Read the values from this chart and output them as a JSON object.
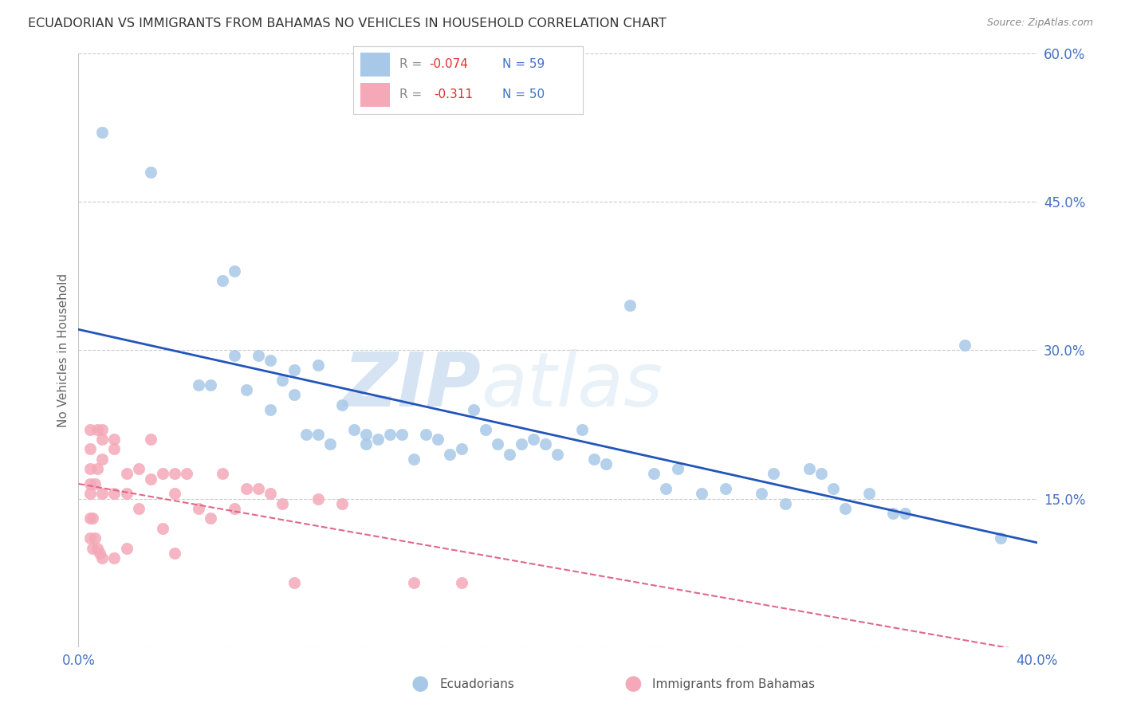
{
  "title": "ECUADORIAN VS IMMIGRANTS FROM BAHAMAS NO VEHICLES IN HOUSEHOLD CORRELATION CHART",
  "source": "Source: ZipAtlas.com",
  "ylabel": "No Vehicles in Household",
  "xlim": [
    0.0,
    0.4
  ],
  "ylim": [
    0.0,
    0.6
  ],
  "xticks": [
    0.0,
    0.05,
    0.1,
    0.15,
    0.2,
    0.25,
    0.3,
    0.35,
    0.4
  ],
  "xtick_labels": [
    "0.0%",
    "",
    "",
    "",
    "",
    "",
    "",
    "",
    "40.0%"
  ],
  "yticks": [
    0.0,
    0.15,
    0.3,
    0.45,
    0.6
  ],
  "ytick_labels": [
    "",
    "15.0%",
    "30.0%",
    "45.0%",
    "60.0%"
  ],
  "blue_color": "#A8C8E8",
  "pink_color": "#F4A8B8",
  "blue_line_color": "#2255BB",
  "pink_line_color": "#E06888",
  "grid_color": "#CCCCCC",
  "watermark_zip": "ZIP",
  "watermark_atlas": "atlas",
  "blue_x": [
    0.01,
    0.03,
    0.05,
    0.055,
    0.06,
    0.065,
    0.065,
    0.07,
    0.075,
    0.08,
    0.08,
    0.085,
    0.09,
    0.09,
    0.095,
    0.1,
    0.1,
    0.105,
    0.11,
    0.115,
    0.12,
    0.12,
    0.125,
    0.13,
    0.135,
    0.14,
    0.145,
    0.15,
    0.155,
    0.16,
    0.165,
    0.17,
    0.175,
    0.18,
    0.185,
    0.19,
    0.195,
    0.2,
    0.21,
    0.215,
    0.22,
    0.23,
    0.24,
    0.245,
    0.25,
    0.26,
    0.27,
    0.285,
    0.29,
    0.295,
    0.305,
    0.31,
    0.315,
    0.32,
    0.33,
    0.34,
    0.345,
    0.37,
    0.385
  ],
  "blue_y": [
    0.52,
    0.48,
    0.265,
    0.265,
    0.37,
    0.38,
    0.295,
    0.26,
    0.295,
    0.29,
    0.24,
    0.27,
    0.255,
    0.28,
    0.215,
    0.285,
    0.215,
    0.205,
    0.245,
    0.22,
    0.205,
    0.215,
    0.21,
    0.215,
    0.215,
    0.19,
    0.215,
    0.21,
    0.195,
    0.2,
    0.24,
    0.22,
    0.205,
    0.195,
    0.205,
    0.21,
    0.205,
    0.195,
    0.22,
    0.19,
    0.185,
    0.345,
    0.175,
    0.16,
    0.18,
    0.155,
    0.16,
    0.155,
    0.175,
    0.145,
    0.18,
    0.175,
    0.16,
    0.14,
    0.155,
    0.135,
    0.135,
    0.305,
    0.11
  ],
  "pink_x": [
    0.005,
    0.005,
    0.005,
    0.005,
    0.005,
    0.005,
    0.005,
    0.006,
    0.006,
    0.007,
    0.007,
    0.008,
    0.008,
    0.008,
    0.009,
    0.01,
    0.01,
    0.01,
    0.01,
    0.01,
    0.015,
    0.015,
    0.015,
    0.015,
    0.02,
    0.02,
    0.02,
    0.025,
    0.025,
    0.03,
    0.03,
    0.035,
    0.035,
    0.04,
    0.04,
    0.04,
    0.045,
    0.05,
    0.055,
    0.06,
    0.065,
    0.07,
    0.075,
    0.08,
    0.085,
    0.09,
    0.1,
    0.11,
    0.14,
    0.16
  ],
  "pink_y": [
    0.22,
    0.2,
    0.18,
    0.165,
    0.155,
    0.13,
    0.11,
    0.13,
    0.1,
    0.165,
    0.11,
    0.22,
    0.18,
    0.1,
    0.095,
    0.22,
    0.21,
    0.19,
    0.155,
    0.09,
    0.21,
    0.2,
    0.155,
    0.09,
    0.175,
    0.155,
    0.1,
    0.18,
    0.14,
    0.21,
    0.17,
    0.175,
    0.12,
    0.175,
    0.155,
    0.095,
    0.175,
    0.14,
    0.13,
    0.175,
    0.14,
    0.16,
    0.16,
    0.155,
    0.145,
    0.065,
    0.15,
    0.145,
    0.065,
    0.065
  ]
}
